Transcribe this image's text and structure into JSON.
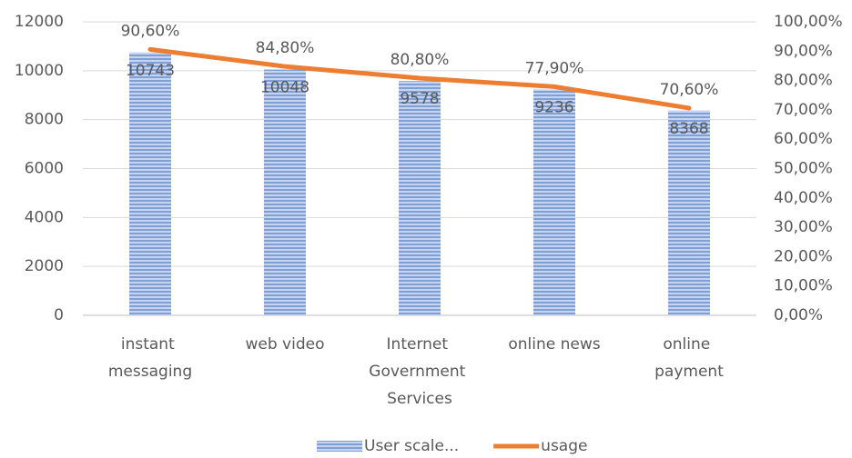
{
  "chart_data": {
    "type": "bar",
    "categories": [
      "instant messaging",
      "web video",
      "Internet Government Services",
      "online news",
      "online payment"
    ],
    "series": [
      {
        "name": "User scale...",
        "type": "bar",
        "color": "#8fa9dc",
        "values": [
          10743,
          10048,
          9578,
          9236,
          8368
        ]
      },
      {
        "name": "usage",
        "type": "line",
        "axis": "y2",
        "color": "#ed7d31",
        "values": [
          90.6,
          84.8,
          80.8,
          77.9,
          70.6
        ],
        "value_labels": [
          "90,60%",
          "84,80%",
          "80,80%",
          "77,90%",
          "70,60%"
        ]
      }
    ],
    "ylim": [
      0,
      12000
    ],
    "yticks": [
      0,
      2000,
      4000,
      6000,
      8000,
      10000,
      12000
    ],
    "y2lim": [
      0,
      100
    ],
    "y2ticks": [
      {
        "value": 0,
        "label": "0,00%"
      },
      {
        "value": 10,
        "label": "10,00%"
      },
      {
        "value": 20,
        "label": "20,00%"
      },
      {
        "value": 30,
        "label": "30,00%"
      },
      {
        "value": 40,
        "label": "40,00%"
      },
      {
        "value": 50,
        "label": "50,00%"
      },
      {
        "value": 60,
        "label": "60,00%"
      },
      {
        "value": 70,
        "label": "70,00%"
      },
      {
        "value": 80,
        "label": "80,00%"
      },
      {
        "value": 90,
        "label": "90,00%"
      },
      {
        "value": 100,
        "label": "100,00%"
      }
    ],
    "grid": true,
    "legend": "bottom"
  }
}
